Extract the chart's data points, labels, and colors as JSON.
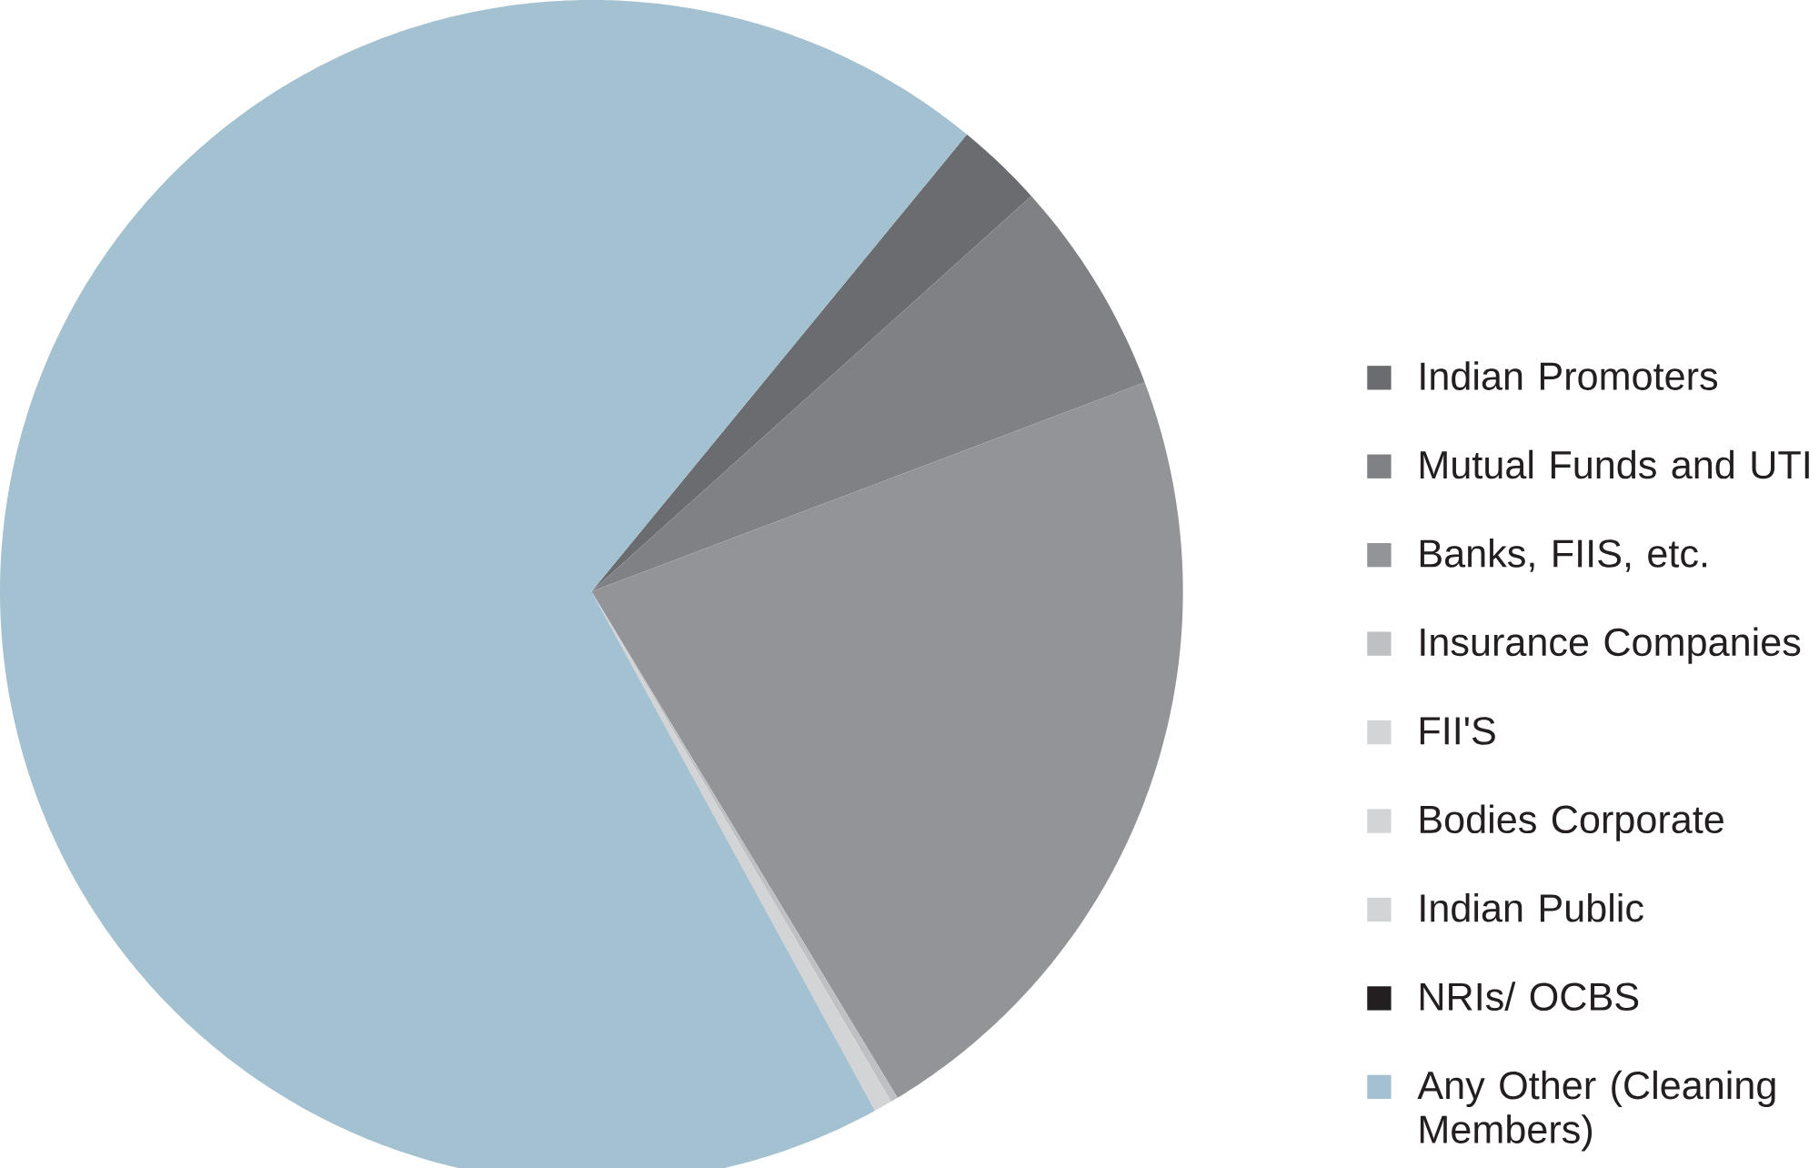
{
  "chart_data": {
    "type": "pie",
    "categories": [
      "Indian Promoters",
      "Mutual Funds and UTI",
      "Banks, FIIS, etc.",
      "Insurance Companies",
      "FII'S",
      "Bodies Corporate",
      "Indian Public",
      "NRIs/ OCBS",
      "Any Other (Cleaning Members)"
    ],
    "values": [
      2.4,
      5.9,
      22.1,
      0.2,
      0,
      0.5,
      0,
      0,
      68.9
    ],
    "colors": [
      "#6b6c70",
      "#808185",
      "#939498",
      "#bfc0c3",
      "#d3d4d6",
      "#d3d4d6",
      "#d3d4d6",
      "#231f20",
      "#a3c1d1"
    ],
    "legend": "right"
  }
}
